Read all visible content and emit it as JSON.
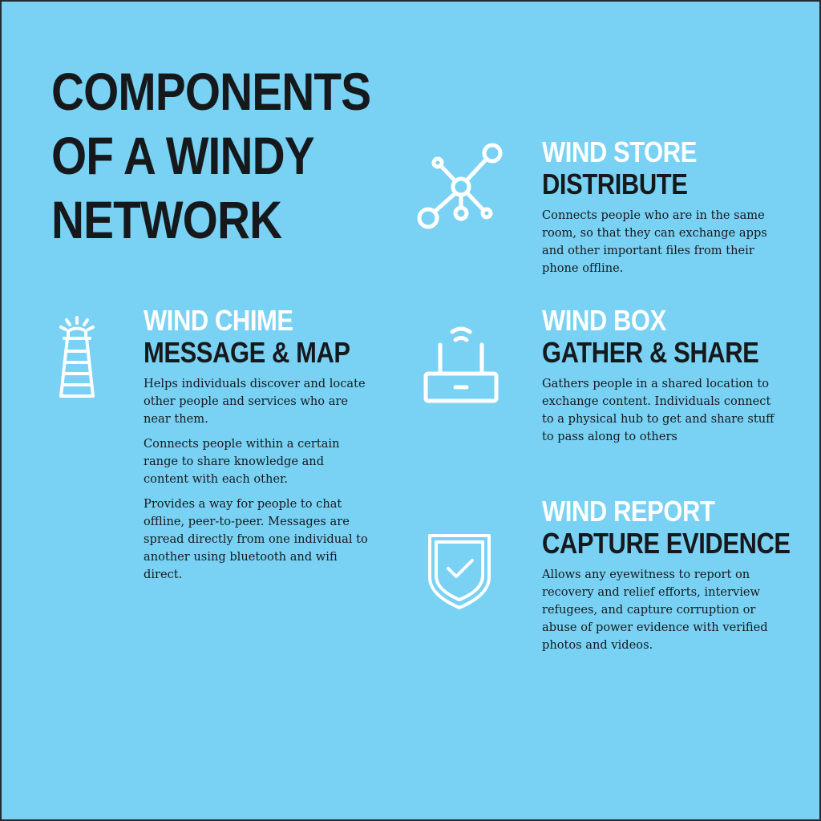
{
  "title": "COMPONENTS OF A WINDY NETWORK",
  "colors": {
    "background": "#79d2f4",
    "heading_light": "#ffffff",
    "heading_dark": "#16191c",
    "body_text": "#16191c",
    "icon_stroke": "#ffffff"
  },
  "components": [
    {
      "icon": "network-nodes-icon",
      "name": "WIND STORE",
      "subtitle": "DISTRIBUTE",
      "paragraphs": [
        "Connects people who are in the same room, so that they can exchange apps and other important files from their phone offline."
      ]
    },
    {
      "icon": "lighthouse-icon",
      "name": "WIND CHIME",
      "subtitle": "MESSAGE & MAP",
      "paragraphs": [
        "Helps individuals discover and locate other people and services who are near them.",
        "Connects people within a certain range to share knowledge and content with each other.",
        "Provides a way for people to chat offline, peer-to-peer. Messages are spread directly from one individual to another using bluetooth and wifi direct."
      ]
    },
    {
      "icon": "router-icon",
      "name": "WIND BOX",
      "subtitle": "GATHER & SHARE",
      "paragraphs": [
        "Gathers people in a shared location to exchange content. Individuals connect to a physical hub to get and share stuff to pass along to others"
      ]
    },
    {
      "icon": "shield-check-icon",
      "name": "WIND REPORT",
      "subtitle": "CAPTURE EVIDENCE",
      "paragraphs": [
        "Allows any eyewitness to report on recovery and relief efforts, interview refugees, and capture corruption or abuse of power evidence with verified photos and videos."
      ]
    }
  ]
}
